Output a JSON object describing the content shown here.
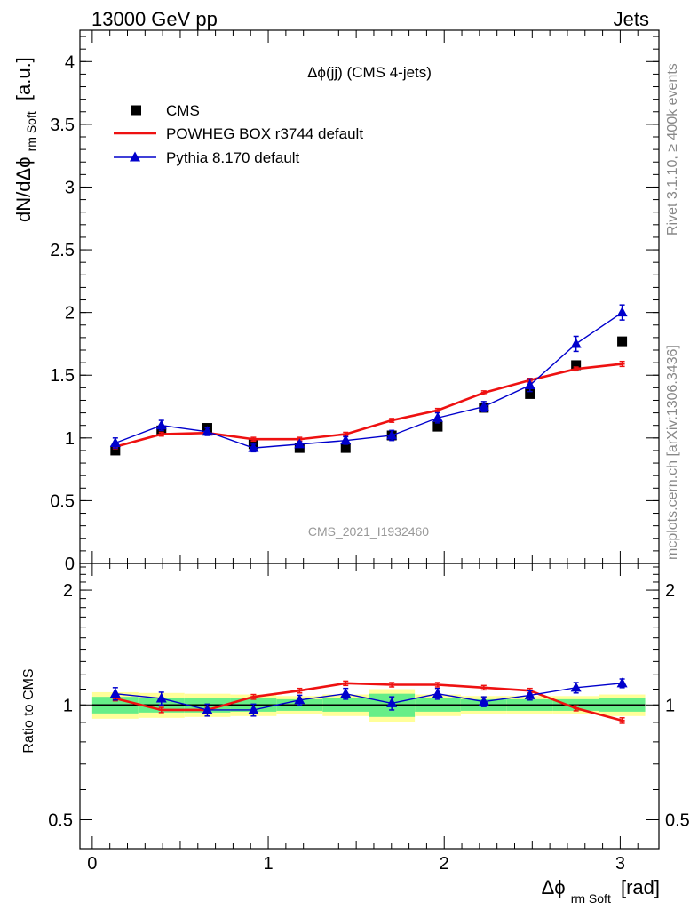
{
  "header": {
    "left": "13000 GeV pp",
    "right": "Jets"
  },
  "side_labels": {
    "rivet": "Rivet 3.1.10, ≥ 400k events",
    "mcplots": "mcplots.cern.ch [arXiv:1306.3436]"
  },
  "chart_data": [
    {
      "type": "line",
      "panel": "main",
      "title": "Δϕ(jj) (CMS 4-jets)",
      "watermark": "CMS_2021_I1932460",
      "ylabel_main": "dN/dΔϕ",
      "ylabel_sub": "rm Soft",
      "ylabel_unit": "[a.u.]",
      "ylim": [
        0,
        4.25
      ],
      "xlim": [
        -0.07,
        3.22
      ],
      "yticks": [
        0,
        0.5,
        1,
        1.5,
        2,
        2.5,
        3,
        3.5,
        4
      ],
      "ytick_labels": [
        "0",
        "0.5",
        "1",
        "1.5",
        "2",
        "2.5",
        "3",
        "3.5",
        "4"
      ],
      "legend_position": "top-left",
      "x": [
        0.131,
        0.393,
        0.654,
        0.916,
        1.178,
        1.44,
        1.702,
        1.963,
        2.225,
        2.487,
        2.749,
        3.011
      ],
      "series": [
        {
          "name": "CMS",
          "color": "#000000",
          "style": "markers-square",
          "values": [
            0.9,
            1.06,
            1.08,
            0.95,
            0.92,
            0.92,
            1.02,
            1.09,
            1.24,
            1.35,
            1.58,
            1.77
          ],
          "errors": [
            0.01,
            0.01,
            0.01,
            0.01,
            0.01,
            0.01,
            0.01,
            0.01,
            0.01,
            0.01,
            0.01,
            0.01
          ]
        },
        {
          "name": "POWHEG BOX r3744 default",
          "color": "#ee1111",
          "style": "line",
          "values": [
            0.93,
            1.03,
            1.04,
            0.99,
            0.99,
            1.03,
            1.14,
            1.22,
            1.36,
            1.46,
            1.55,
            1.59
          ],
          "errors": [
            0.015,
            0.015,
            0.015,
            0.015,
            0.015,
            0.015,
            0.015,
            0.015,
            0.015,
            0.015,
            0.015,
            0.02
          ]
        },
        {
          "name": "Pythia 8.170 default",
          "color": "#0000cc",
          "style": "line-triangles",
          "values": [
            0.96,
            1.1,
            1.05,
            0.92,
            0.95,
            0.98,
            1.02,
            1.16,
            1.25,
            1.42,
            1.75,
            2.0
          ],
          "errors": [
            0.04,
            0.04,
            0.03,
            0.03,
            0.02,
            0.03,
            0.04,
            0.04,
            0.04,
            0.05,
            0.06,
            0.06
          ]
        }
      ]
    },
    {
      "type": "line",
      "panel": "ratio",
      "ylabel": "Ratio to CMS",
      "xlabel_main": "Δϕ",
      "xlabel_sub": "rm Soft",
      "xlabel_unit": "[rad]",
      "ylog": true,
      "ylim": [
        0.42,
        2.35
      ],
      "xlim": [
        -0.07,
        3.22
      ],
      "yticks_major": [
        0.5,
        1,
        2
      ],
      "ytick_labels": [
        "0.5",
        "1",
        "2"
      ],
      "xticks": [
        0,
        1,
        2,
        3
      ],
      "xtick_labels": [
        "0",
        "1",
        "2",
        "3"
      ],
      "band_edges": [
        0.0,
        0.262,
        0.524,
        0.785,
        1.047,
        1.309,
        1.571,
        1.833,
        2.094,
        2.356,
        2.618,
        2.88,
        3.142
      ],
      "band_green": [
        0.05,
        0.045,
        0.045,
        0.04,
        0.035,
        0.04,
        0.07,
        0.04,
        0.035,
        0.035,
        0.035,
        0.04
      ],
      "band_yellow": [
        0.08,
        0.075,
        0.07,
        0.065,
        0.055,
        0.065,
        0.1,
        0.065,
        0.055,
        0.055,
        0.055,
        0.065
      ],
      "series": [
        {
          "name": "POWHEG BOX r3744 default",
          "color": "#ee1111",
          "values": [
            1.04,
            0.97,
            0.97,
            1.05,
            1.09,
            1.14,
            1.13,
            1.13,
            1.11,
            1.09,
            0.98,
            0.91
          ],
          "errors": [
            0.015,
            0.015,
            0.015,
            0.015,
            0.015,
            0.015,
            0.015,
            0.015,
            0.015,
            0.015,
            0.015,
            0.015
          ]
        },
        {
          "name": "Pythia 8.170 default",
          "color": "#0000cc",
          "values": [
            1.07,
            1.04,
            0.97,
            0.97,
            1.03,
            1.07,
            1.01,
            1.07,
            1.02,
            1.06,
            1.11,
            1.14
          ],
          "errors": [
            0.04,
            0.04,
            0.035,
            0.035,
            0.03,
            0.035,
            0.04,
            0.035,
            0.03,
            0.03,
            0.035,
            0.03
          ]
        }
      ]
    }
  ]
}
